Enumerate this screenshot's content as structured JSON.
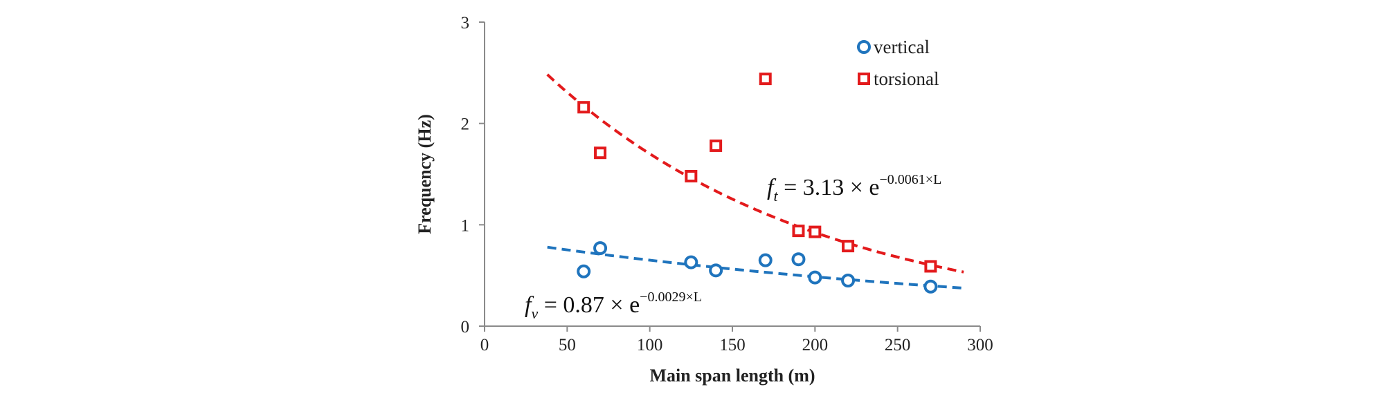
{
  "chart_data": {
    "type": "scatter",
    "xlabel": "Main span length (m)",
    "ylabel": "Frequency (Hz)",
    "xlim": [
      0,
      300
    ],
    "ylim": [
      0,
      3
    ],
    "x_ticks": [
      "0",
      "50",
      "100",
      "150",
      "200",
      "250",
      "300"
    ],
    "y_ticks": [
      "0",
      "1",
      "2",
      "3"
    ],
    "grid": false,
    "legend_position": "top-right",
    "series": [
      {
        "name": "vertical",
        "marker": "circle",
        "color": "#1f74bd",
        "points": [
          [
            60,
            0.54
          ],
          [
            70,
            0.77
          ],
          [
            125,
            0.63
          ],
          [
            140,
            0.55
          ],
          [
            170,
            0.65
          ],
          [
            190,
            0.66
          ],
          [
            200,
            0.48
          ],
          [
            220,
            0.45
          ],
          [
            270,
            0.39
          ]
        ]
      },
      {
        "name": "torsional",
        "marker": "square",
        "color": "#e31a1c",
        "points": [
          [
            60,
            2.16
          ],
          [
            70,
            1.71
          ],
          [
            125,
            1.48
          ],
          [
            140,
            1.78
          ],
          [
            170,
            2.44
          ],
          [
            190,
            0.94
          ],
          [
            200,
            0.93
          ],
          [
            220,
            0.79
          ],
          [
            270,
            0.59
          ]
        ]
      }
    ],
    "trendlines": [
      {
        "series": "torsional",
        "style": "dashed",
        "color": "#e31a1c",
        "a": 3.13,
        "b": -0.0061,
        "x_range": [
          38,
          290
        ],
        "label": {
          "f": "f",
          "sub": "t",
          "rest": " = 3.13 × e",
          "sup": "−0.0061×L"
        }
      },
      {
        "series": "vertical",
        "style": "dashed",
        "color": "#1f74bd",
        "a": 0.87,
        "b": -0.0029,
        "x_range": [
          38,
          290
        ],
        "label": {
          "f": "f",
          "sub": "v",
          "rest": " = 0.87 × e",
          "sup": "−0.0029×L"
        }
      }
    ]
  }
}
